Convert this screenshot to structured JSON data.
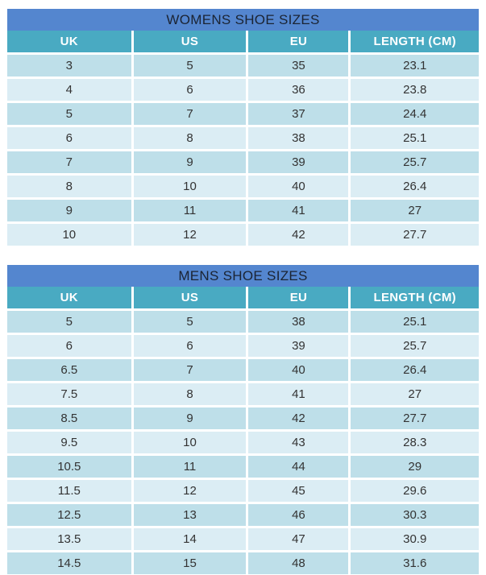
{
  "colors": {
    "page_bg": "#ffffff",
    "title_bg": "#5486cf",
    "title_text": "#1b2433",
    "header_bg": "#49aac2",
    "header_text": "#ffffff",
    "row_dark": "#bedfe9",
    "row_light": "#dbedf4",
    "cell_text": "#333333"
  },
  "tables": [
    {
      "title": "WOMENS SHOE SIZES",
      "columns": [
        "UK",
        "US",
        "EU",
        "LENGTH (CM)"
      ],
      "rows": [
        [
          "3",
          "5",
          "35",
          "23.1"
        ],
        [
          "4",
          "6",
          "36",
          "23.8"
        ],
        [
          "5",
          "7",
          "37",
          "24.4"
        ],
        [
          "6",
          "8",
          "38",
          "25.1"
        ],
        [
          "7",
          "9",
          "39",
          "25.7"
        ],
        [
          "8",
          "10",
          "40",
          "26.4"
        ],
        [
          "9",
          "11",
          "41",
          "27"
        ],
        [
          "10",
          "12",
          "42",
          "27.7"
        ]
      ]
    },
    {
      "title": "MENS SHOE SIZES",
      "columns": [
        "UK",
        "US",
        "EU",
        "LENGTH (CM)"
      ],
      "rows": [
        [
          "5",
          "5",
          "38",
          "25.1"
        ],
        [
          "6",
          "6",
          "39",
          "25.7"
        ],
        [
          "6.5",
          "7",
          "40",
          "26.4"
        ],
        [
          "7.5",
          "8",
          "41",
          "27"
        ],
        [
          "8.5",
          "9",
          "42",
          "27.7"
        ],
        [
          "9.5",
          "10",
          "43",
          "28.3"
        ],
        [
          "10.5",
          "11",
          "44",
          "29"
        ],
        [
          "11.5",
          "12",
          "45",
          "29.6"
        ],
        [
          "12.5",
          "13",
          "46",
          "30.3"
        ],
        [
          "13.5",
          "14",
          "47",
          "30.9"
        ],
        [
          "14.5",
          "15",
          "48",
          "31.6"
        ]
      ]
    }
  ]
}
